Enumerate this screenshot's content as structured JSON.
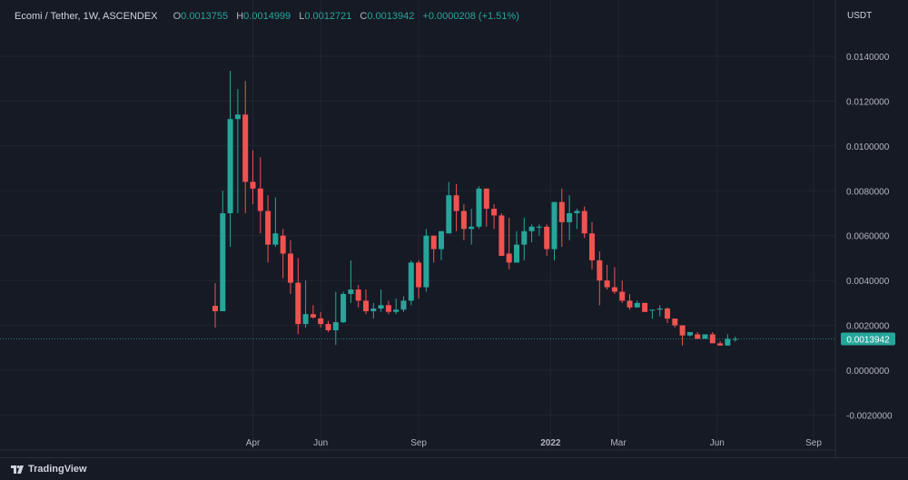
{
  "header": {
    "symbol": "Ecomi / Tether, 1W, ASCENDEX",
    "open_label": "O",
    "open": "0.0013755",
    "high_label": "H",
    "high": "0.0014999",
    "low_label": "L",
    "low": "0.0012721",
    "close_label": "C",
    "close": "0.0013942",
    "change": "+0.0000208 (+1.51%)"
  },
  "currency": "USDT",
  "branding": "TradingView",
  "colors": {
    "up": "#26a69a",
    "down": "#ef5350",
    "background": "#161a25",
    "grid": "#222631"
  },
  "chart_data": {
    "type": "candlestick",
    "title": "Ecomi / Tether, 1W, ASCENDEX",
    "ylabel": "USDT",
    "ylim": [
      -0.0024,
      0.0154
    ],
    "y_ticks": [
      "0.0140000",
      "0.0120000",
      "0.0100000",
      "0.0080000",
      "0.0060000",
      "0.0040000",
      "0.0020000",
      "0.0000000",
      "-0.0020000"
    ],
    "y_tick_values": [
      0.014,
      0.012,
      0.01,
      0.008,
      0.006,
      0.004,
      0.002,
      0,
      -0.002
    ],
    "x_ticks": [
      {
        "label": "Apr",
        "week": 5
      },
      {
        "label": "Jun",
        "week": 14
      },
      {
        "label": "Sep",
        "week": 27
      },
      {
        "label": "2022",
        "week": 44.5
      },
      {
        "label": "Mar",
        "week": 53.5
      },
      {
        "label": "Jun",
        "week": 66.6
      },
      {
        "label": "Sep",
        "week": 79.4
      }
    ],
    "last_price": "0.0013942",
    "last_price_value": 0.0013942,
    "grid": true,
    "ohlc": [
      [
        0.00287,
        0.00388,
        0.0019,
        0.00263
      ],
      [
        0.00263,
        0.008,
        0.00263,
        0.007
      ],
      [
        0.007,
        0.01335,
        0.0055,
        0.0112
      ],
      [
        0.0112,
        0.01254,
        0.007,
        0.0114
      ],
      [
        0.0114,
        0.0129,
        0.007,
        0.0084
      ],
      [
        0.0084,
        0.0098,
        0.0074,
        0.0081
      ],
      [
        0.0081,
        0.0095,
        0.0061,
        0.0071
      ],
      [
        0.0071,
        0.0078,
        0.0048,
        0.0056
      ],
      [
        0.0056,
        0.0077,
        0.0055,
        0.0061
      ],
      [
        0.006,
        0.0063,
        0.0041,
        0.0052
      ],
      [
        0.0052,
        0.0058,
        0.0034,
        0.0039
      ],
      [
        0.0039,
        0.005,
        0.0016,
        0.00206
      ],
      [
        0.00206,
        0.004,
        0.0019,
        0.0025
      ],
      [
        0.0025,
        0.0029,
        0.0023,
        0.00235
      ],
      [
        0.00231,
        0.0026,
        0.0019,
        0.00206
      ],
      [
        0.00206,
        0.0022,
        0.0017,
        0.00178
      ],
      [
        0.00178,
        0.0035,
        0.00113,
        0.00214
      ],
      [
        0.00214,
        0.0035,
        0.0021,
        0.0034
      ],
      [
        0.0034,
        0.0049,
        0.003,
        0.0036
      ],
      [
        0.0036,
        0.0038,
        0.0028,
        0.0031
      ],
      [
        0.0031,
        0.0036,
        0.0025,
        0.00263
      ],
      [
        0.00263,
        0.003,
        0.0023,
        0.00275
      ],
      [
        0.00275,
        0.0036,
        0.0026,
        0.0029
      ],
      [
        0.0029,
        0.0031,
        0.0025,
        0.0026
      ],
      [
        0.0026,
        0.0032,
        0.0025,
        0.0027
      ],
      [
        0.0027,
        0.0033,
        0.0026,
        0.0031
      ],
      [
        0.0031,
        0.0049,
        0.0029,
        0.0048
      ],
      [
        0.0048,
        0.0049,
        0.0032,
        0.0037
      ],
      [
        0.0037,
        0.0063,
        0.0035,
        0.006
      ],
      [
        0.006,
        0.006,
        0.0048,
        0.0054
      ],
      [
        0.0054,
        0.0062,
        0.0049,
        0.0062
      ],
      [
        0.0061,
        0.0084,
        0.0061,
        0.0078
      ],
      [
        0.0078,
        0.0083,
        0.0062,
        0.0071
      ],
      [
        0.0071,
        0.0074,
        0.0058,
        0.0063
      ],
      [
        0.0063,
        0.0072,
        0.0056,
        0.0064
      ],
      [
        0.0064,
        0.0082,
        0.0063,
        0.0081
      ],
      [
        0.0081,
        0.0081,
        0.0064,
        0.0072
      ],
      [
        0.0072,
        0.0074,
        0.0063,
        0.0069
      ],
      [
        0.0069,
        0.007,
        0.0051,
        0.0051
      ],
      [
        0.0052,
        0.0068,
        0.0045,
        0.0048
      ],
      [
        0.0048,
        0.0062,
        0.0048,
        0.0056
      ],
      [
        0.0056,
        0.0068,
        0.0049,
        0.0062
      ],
      [
        0.0062,
        0.0065,
        0.0057,
        0.0064
      ],
      [
        0.0064,
        0.0065,
        0.006,
        0.0064
      ],
      [
        0.0064,
        0.0065,
        0.0051,
        0.0054
      ],
      [
        0.0054,
        0.0075,
        0.0049,
        0.0075
      ],
      [
        0.0075,
        0.0081,
        0.0055,
        0.0066
      ],
      [
        0.0066,
        0.0078,
        0.0058,
        0.007
      ],
      [
        0.007,
        0.0072,
        0.0063,
        0.0071
      ],
      [
        0.0071,
        0.0073,
        0.0059,
        0.0061
      ],
      [
        0.0061,
        0.0066,
        0.0045,
        0.0049
      ],
      [
        0.0049,
        0.0053,
        0.0029,
        0.004
      ],
      [
        0.004,
        0.0047,
        0.0036,
        0.0037
      ],
      [
        0.0037,
        0.0046,
        0.0034,
        0.0035
      ],
      [
        0.0035,
        0.004,
        0.003,
        0.0031
      ],
      [
        0.0031,
        0.0034,
        0.0027,
        0.0028
      ],
      [
        0.0028,
        0.0031,
        0.0028,
        0.003
      ],
      [
        0.003,
        0.003,
        0.0026,
        0.0026
      ],
      [
        0.0027,
        0.0027,
        0.0023,
        0.0027
      ],
      [
        0.0027,
        0.0029,
        0.0024,
        0.00275
      ],
      [
        0.00275,
        0.0028,
        0.0021,
        0.0023
      ],
      [
        0.0023,
        0.0023,
        0.0019,
        0.002
      ],
      [
        0.002,
        0.002,
        0.0011,
        0.00155
      ],
      [
        0.00155,
        0.0017,
        0.0015,
        0.0017
      ],
      [
        0.0016,
        0.0017,
        0.0014,
        0.0014
      ],
      [
        0.0014,
        0.0016,
        0.0014,
        0.0016
      ],
      [
        0.0016,
        0.0017,
        0.0012,
        0.0012
      ],
      [
        0.0012,
        0.0013,
        0.0011,
        0.0011
      ],
      [
        0.0011,
        0.0016,
        0.0011,
        0.0014
      ],
      [
        0.0013755,
        0.0014999,
        0.0012721,
        0.0013942
      ]
    ]
  }
}
